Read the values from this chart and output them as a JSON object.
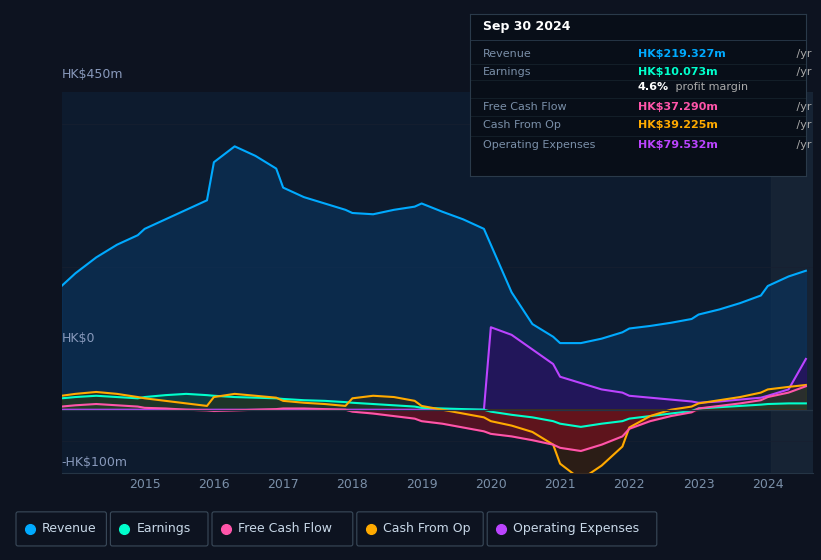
{
  "background_color": "#0d1320",
  "plot_bg_color": "#0d1b2e",
  "title_box": {
    "date": "Sep 30 2024",
    "rows": [
      {
        "label": "Revenue",
        "value": "HK$219.327m",
        "value_color": "#00aaff",
        "suffix": " /yr"
      },
      {
        "label": "Earnings",
        "value": "HK$10.073m",
        "value_color": "#00ffcc",
        "suffix": " /yr"
      },
      {
        "label": "",
        "value": "4.6%",
        "value_color": "#ffffff",
        "suffix": " profit margin"
      },
      {
        "label": "Free Cash Flow",
        "value": "HK$37.290m",
        "value_color": "#ff55aa",
        "suffix": " /yr"
      },
      {
        "label": "Cash From Op",
        "value": "HK$39.225m",
        "value_color": "#ffaa00",
        "suffix": " /yr"
      },
      {
        "label": "Operating Expenses",
        "value": "HK$79.532m",
        "value_color": "#bb44ff",
        "suffix": " /yr"
      }
    ]
  },
  "ylim": [
    -100,
    500
  ],
  "years": [
    2013.8,
    2014.0,
    2014.3,
    2014.6,
    2014.9,
    2015.0,
    2015.3,
    2015.6,
    2015.9,
    2016.0,
    2016.3,
    2016.6,
    2016.9,
    2017.0,
    2017.3,
    2017.6,
    2017.9,
    2018.0,
    2018.3,
    2018.6,
    2018.9,
    2019.0,
    2019.3,
    2019.6,
    2019.9,
    2020.0,
    2020.3,
    2020.6,
    2020.9,
    2021.0,
    2021.3,
    2021.6,
    2021.9,
    2022.0,
    2022.3,
    2022.6,
    2022.9,
    2023.0,
    2023.3,
    2023.6,
    2023.9,
    2024.0,
    2024.3,
    2024.55
  ],
  "revenue": [
    195,
    215,
    240,
    260,
    275,
    285,
    300,
    315,
    330,
    390,
    415,
    400,
    380,
    350,
    335,
    325,
    315,
    310,
    308,
    315,
    320,
    325,
    312,
    300,
    285,
    260,
    185,
    135,
    115,
    105,
    105,
    112,
    122,
    128,
    132,
    137,
    143,
    150,
    158,
    168,
    180,
    195,
    210,
    219
  ],
  "earnings": [
    18,
    20,
    22,
    20,
    18,
    20,
    23,
    25,
    23,
    22,
    20,
    19,
    18,
    17,
    15,
    14,
    12,
    11,
    9,
    7,
    5,
    3,
    2,
    1,
    0,
    -3,
    -8,
    -12,
    -18,
    -22,
    -27,
    -22,
    -18,
    -14,
    -10,
    -6,
    -2,
    2,
    4,
    6,
    8,
    9,
    10,
    10
  ],
  "free_cash_flow": [
    5,
    7,
    9,
    7,
    5,
    3,
    2,
    0,
    -1,
    -2,
    -1,
    0,
    1,
    2,
    2,
    1,
    0,
    -3,
    -6,
    -10,
    -14,
    -18,
    -22,
    -28,
    -34,
    -38,
    -42,
    -48,
    -55,
    -60,
    -65,
    -55,
    -42,
    -30,
    -18,
    -10,
    -4,
    2,
    6,
    10,
    15,
    20,
    27,
    37
  ],
  "cash_from_op": [
    22,
    25,
    28,
    25,
    20,
    18,
    14,
    10,
    6,
    20,
    25,
    22,
    19,
    14,
    11,
    9,
    6,
    18,
    22,
    20,
    14,
    6,
    0,
    -6,
    -12,
    -18,
    -25,
    -35,
    -55,
    -85,
    -110,
    -88,
    -58,
    -28,
    -10,
    0,
    5,
    10,
    15,
    20,
    27,
    32,
    36,
    39
  ],
  "op_expenses": [
    0,
    0,
    0,
    0,
    0,
    0,
    0,
    0,
    0,
    0,
    0,
    0,
    0,
    0,
    0,
    0,
    0,
    0,
    0,
    0,
    0,
    0,
    0,
    0,
    0,
    130,
    118,
    95,
    72,
    52,
    42,
    32,
    27,
    22,
    19,
    16,
    13,
    11,
    13,
    16,
    19,
    22,
    32,
    80
  ],
  "colors": {
    "revenue": "#00aaff",
    "earnings": "#00ffcc",
    "free_cash_flow": "#ff55aa",
    "cash_from_op": "#ffaa00",
    "op_expenses": "#bb44ff"
  },
  "fill_colors": {
    "revenue": "#0a3560",
    "earnings": "#0d4a38",
    "free_cash_flow_neg": "#6a1520",
    "cash_from_op_neg": "#5a3200",
    "op_expenses": "#2a1060"
  },
  "xticks": [
    2015,
    2016,
    2017,
    2018,
    2019,
    2020,
    2021,
    2022,
    2023,
    2024
  ],
  "grid_color": "#182030",
  "hline_color": "#253545"
}
